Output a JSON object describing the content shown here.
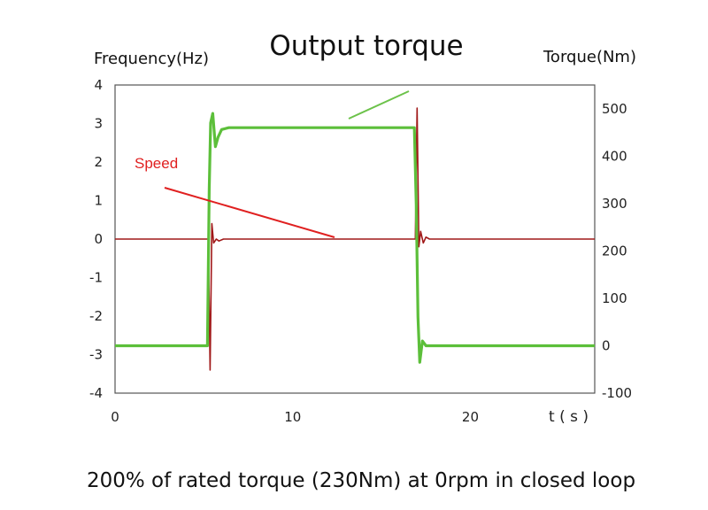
{
  "chart_data": {
    "type": "line",
    "title": "Output torque",
    "caption": "200% of rated torque (230Nm) at 0rpm in closed loop",
    "ylabel_left": "Frequency(Hz)",
    "ylabel_right": "Torque(Nm)",
    "xlabel": "t ( s )",
    "xlim": [
      0,
      27
    ],
    "ylim_left": [
      -4,
      4
    ],
    "ylim_right": [
      -100,
      550
    ],
    "x_ticks": [
      "0",
      "10",
      "20"
    ],
    "y_ticks_left": [
      "4",
      "3",
      "2",
      "1",
      "0",
      "-1",
      "-2",
      "-3",
      "-4"
    ],
    "y_ticks_right": [
      "500",
      "400",
      "300",
      "200",
      "100",
      "0",
      "-100"
    ],
    "grid": true,
    "annotation": "Speed",
    "colors": {
      "frequency": "#a01818",
      "torque": "#5cbf3a",
      "annotation": "#e02020"
    },
    "series": [
      {
        "axis": "left",
        "x": [
          0,
          5.25,
          5.35,
          5.45,
          5.55,
          5.7,
          5.85,
          6.1,
          7,
          16.9,
          17.0,
          17.1,
          17.2,
          17.35,
          17.5,
          17.7,
          18.2,
          27
        ],
        "y": [
          0,
          0,
          -3.4,
          0.4,
          -0.1,
          0,
          -0.05,
          0,
          0,
          0,
          3.4,
          -0.2,
          0.2,
          -0.1,
          0.05,
          0,
          0,
          0
        ]
      },
      {
        "axis": "right",
        "x": [
          0,
          5.2,
          5.3,
          5.38,
          5.5,
          5.65,
          5.8,
          6.0,
          6.4,
          16.85,
          16.95,
          17.05,
          17.15,
          17.3,
          17.5,
          17.8,
          20.5,
          27
        ],
        "y": [
          0,
          0,
          330,
          470,
          490,
          420,
          440,
          456,
          460,
          460,
          300,
          60,
          -35,
          10,
          0,
          0,
          0,
          0
        ]
      }
    ]
  }
}
